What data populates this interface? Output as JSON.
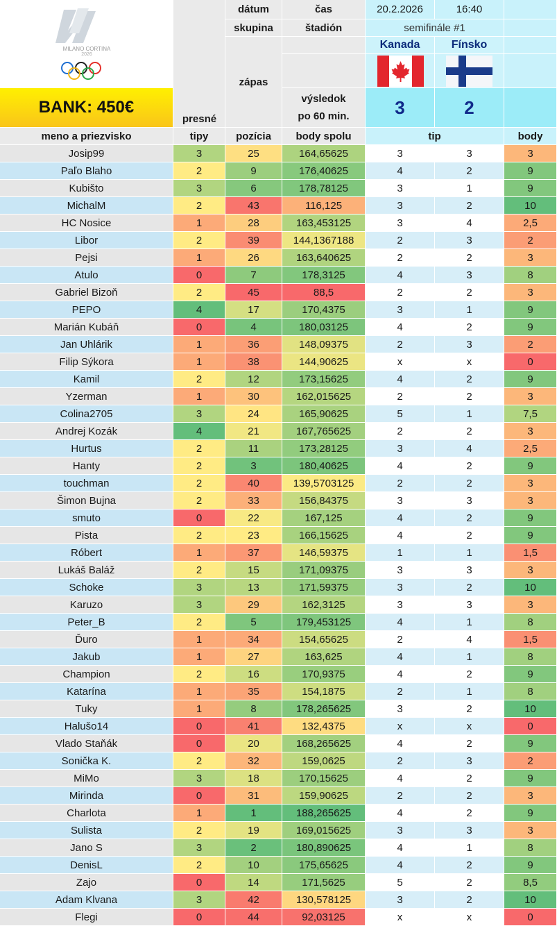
{
  "header": {
    "bank": "BANK: 450€",
    "logo_text": "MILANO CORTINA",
    "logo_year": "2026",
    "datum_label": "dátum",
    "cas_label": "čas",
    "datum_value": "20.2.2026",
    "cas_value": "16:40",
    "skupina_label": "skupina",
    "stadion_label": "štadión",
    "stage_value": "semifinále #1",
    "zapas_label": "zápas",
    "vysledok_label_1": "výsledok",
    "vysledok_label_2": "po 60 min.",
    "team_home": "Kanada",
    "team_away": "Fínsko",
    "score_home": "3",
    "score_away": "2",
    "presne_label": "presné"
  },
  "columns": {
    "name": "meno a priezvisko",
    "tipy": "tipy",
    "pozicia": "pozícia",
    "body_spolu": "body spolu",
    "tip": "tip",
    "body": "body"
  },
  "rows": [
    {
      "name": "Josip99",
      "tipy": "3",
      "poz": "25",
      "spolu": "164,65625",
      "t1": "3",
      "t2": "3",
      "body": "3"
    },
    {
      "name": "Paľo Blaho",
      "tipy": "2",
      "poz": "9",
      "spolu": "176,40625",
      "t1": "4",
      "t2": "2",
      "body": "9"
    },
    {
      "name": "Kubišto",
      "tipy": "3",
      "poz": "6",
      "spolu": "178,78125",
      "t1": "3",
      "t2": "1",
      "body": "9"
    },
    {
      "name": "MichalM",
      "tipy": "2",
      "poz": "43",
      "spolu": "116,125",
      "t1": "3",
      "t2": "2",
      "body": "10"
    },
    {
      "name": "HC Nosice",
      "tipy": "1",
      "poz": "28",
      "spolu": "163,453125",
      "t1": "3",
      "t2": "4",
      "body": "2,5"
    },
    {
      "name": "Libor",
      "tipy": "2",
      "poz": "39",
      "spolu": "144,1367188",
      "t1": "2",
      "t2": "3",
      "body": "2"
    },
    {
      "name": "Pejsi",
      "tipy": "1",
      "poz": "26",
      "spolu": "163,640625",
      "t1": "2",
      "t2": "2",
      "body": "3"
    },
    {
      "name": "Atulo",
      "tipy": "0",
      "poz": "7",
      "spolu": "178,3125",
      "t1": "4",
      "t2": "3",
      "body": "8"
    },
    {
      "name": "Gabriel Bizoň",
      "tipy": "2",
      "poz": "45",
      "spolu": "88,5",
      "t1": "2",
      "t2": "2",
      "body": "3"
    },
    {
      "name": "PEPO",
      "tipy": "4",
      "poz": "17",
      "spolu": "170,4375",
      "t1": "3",
      "t2": "1",
      "body": "9"
    },
    {
      "name": "Marián Kubáň",
      "tipy": "0",
      "poz": "4",
      "spolu": "180,03125",
      "t1": "4",
      "t2": "2",
      "body": "9"
    },
    {
      "name": "Jan Uhlárik",
      "tipy": "1",
      "poz": "36",
      "spolu": "148,09375",
      "t1": "2",
      "t2": "3",
      "body": "2"
    },
    {
      "name": "Filip Sýkora",
      "tipy": "1",
      "poz": "38",
      "spolu": "144,90625",
      "t1": "x",
      "t2": "x",
      "body": "0"
    },
    {
      "name": "Kamil",
      "tipy": "2",
      "poz": "12",
      "spolu": "173,15625",
      "t1": "4",
      "t2": "2",
      "body": "9"
    },
    {
      "name": "Yzerman",
      "tipy": "1",
      "poz": "30",
      "spolu": "162,015625",
      "t1": "2",
      "t2": "2",
      "body": "3"
    },
    {
      "name": "Colina2705",
      "tipy": "3",
      "poz": "24",
      "spolu": "165,90625",
      "t1": "5",
      "t2": "1",
      "body": "7,5"
    },
    {
      "name": "Andrej Kozák",
      "tipy": "4",
      "poz": "21",
      "spolu": "167,765625",
      "t1": "2",
      "t2": "2",
      "body": "3"
    },
    {
      "name": "Hurtus",
      "tipy": "2",
      "poz": "11",
      "spolu": "173,28125",
      "t1": "3",
      "t2": "4",
      "body": "2,5"
    },
    {
      "name": "Hanty",
      "tipy": "2",
      "poz": "3",
      "spolu": "180,40625",
      "t1": "4",
      "t2": "2",
      "body": "9"
    },
    {
      "name": "touchman",
      "tipy": "2",
      "poz": "40",
      "spolu": "139,5703125",
      "t1": "2",
      "t2": "2",
      "body": "3"
    },
    {
      "name": "Šimon Bujna",
      "tipy": "2",
      "poz": "33",
      "spolu": "156,84375",
      "t1": "3",
      "t2": "3",
      "body": "3"
    },
    {
      "name": "smuto",
      "tipy": "0",
      "poz": "22",
      "spolu": "167,125",
      "t1": "4",
      "t2": "2",
      "body": "9"
    },
    {
      "name": "Pista",
      "tipy": "2",
      "poz": "23",
      "spolu": "166,15625",
      "t1": "4",
      "t2": "2",
      "body": "9"
    },
    {
      "name": "Róbert",
      "tipy": "1",
      "poz": "37",
      "spolu": "146,59375",
      "t1": "1",
      "t2": "1",
      "body": "1,5"
    },
    {
      "name": "Lukáš Baláž",
      "tipy": "2",
      "poz": "15",
      "spolu": "171,09375",
      "t1": "3",
      "t2": "3",
      "body": "3"
    },
    {
      "name": "Schoke",
      "tipy": "3",
      "poz": "13",
      "spolu": "171,59375",
      "t1": "3",
      "t2": "2",
      "body": "10"
    },
    {
      "name": "Karuzo",
      "tipy": "3",
      "poz": "29",
      "spolu": "162,3125",
      "t1": "3",
      "t2": "3",
      "body": "3"
    },
    {
      "name": "Peter_B",
      "tipy": "2",
      "poz": "5",
      "spolu": "179,453125",
      "t1": "4",
      "t2": "1",
      "body": "8"
    },
    {
      "name": "Ďuro",
      "tipy": "1",
      "poz": "34",
      "spolu": "154,65625",
      "t1": "2",
      "t2": "4",
      "body": "1,5"
    },
    {
      "name": "Jakub",
      "tipy": "1",
      "poz": "27",
      "spolu": "163,625",
      "t1": "4",
      "t2": "1",
      "body": "8"
    },
    {
      "name": "Champion",
      "tipy": "2",
      "poz": "16",
      "spolu": "170,9375",
      "t1": "4",
      "t2": "2",
      "body": "9"
    },
    {
      "name": "Katarína",
      "tipy": "1",
      "poz": "35",
      "spolu": "154,1875",
      "t1": "2",
      "t2": "1",
      "body": "8"
    },
    {
      "name": "Tuky",
      "tipy": "1",
      "poz": "8",
      "spolu": "178,265625",
      "t1": "3",
      "t2": "2",
      "body": "10"
    },
    {
      "name": "Halušo14",
      "tipy": "0",
      "poz": "41",
      "spolu": "132,4375",
      "t1": "x",
      "t2": "x",
      "body": "0"
    },
    {
      "name": "Vlado Staňák",
      "tipy": "0",
      "poz": "20",
      "spolu": "168,265625",
      "t1": "4",
      "t2": "2",
      "body": "9"
    },
    {
      "name": "Sonička K.",
      "tipy": "2",
      "poz": "32",
      "spolu": "159,0625",
      "t1": "2",
      "t2": "3",
      "body": "2"
    },
    {
      "name": "MiMo",
      "tipy": "3",
      "poz": "18",
      "spolu": "170,15625",
      "t1": "4",
      "t2": "2",
      "body": "9"
    },
    {
      "name": "Mirinda",
      "tipy": "0",
      "poz": "31",
      "spolu": "159,90625",
      "t1": "2",
      "t2": "2",
      "body": "3"
    },
    {
      "name": "Charlota",
      "tipy": "1",
      "poz": "1",
      "spolu": "188,265625",
      "t1": "4",
      "t2": "2",
      "body": "9"
    },
    {
      "name": "Sulista",
      "tipy": "2",
      "poz": "19",
      "spolu": "169,015625",
      "t1": "3",
      "t2": "3",
      "body": "3"
    },
    {
      "name": "Jano S",
      "tipy": "3",
      "poz": "2",
      "spolu": "180,890625",
      "t1": "4",
      "t2": "1",
      "body": "8"
    },
    {
      "name": "DenisL",
      "tipy": "2",
      "poz": "10",
      "spolu": "175,65625",
      "t1": "4",
      "t2": "2",
      "body": "9"
    },
    {
      "name": "Zajo",
      "tipy": "0",
      "poz": "14",
      "spolu": "171,5625",
      "t1": "5",
      "t2": "2",
      "body": "8,5"
    },
    {
      "name": "Adam Klvana",
      "tipy": "3",
      "poz": "42",
      "spolu": "130,578125",
      "t1": "3",
      "t2": "2",
      "body": "10"
    },
    {
      "name": "Flegi",
      "tipy": "0",
      "poz": "44",
      "spolu": "92,03125",
      "t1": "x",
      "t2": "x",
      "body": "0"
    }
  ]
}
